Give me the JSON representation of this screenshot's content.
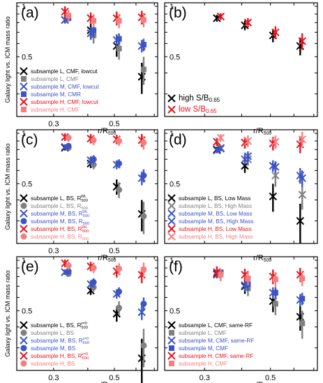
{
  "figure": {
    "ylabel": "Galaxy light vs. ICM mass ratio",
    "xlabel": "r/R",
    "xlabel_sub": "500"
  },
  "colors": {
    "black": "#000000",
    "gray": "#808080",
    "blue": "#3d55c4",
    "red": "#e8141e",
    "pink": "#f08080"
  },
  "chart_data": [
    {
      "panel_label": "(a)",
      "type": "scatter",
      "xscale": "log",
      "yscale": "log",
      "xticks": [
        "0.3",
        "0.5"
      ],
      "yticks": [
        "0.5",
        "1"
      ],
      "legend": "bottom-left",
      "series": [
        {
          "name": "subsample L, CMF, lowcut",
          "color": "black",
          "marker": "x",
          "x": [
            0.33,
            0.41,
            0.51,
            0.63
          ],
          "y": [
            0.83,
            0.72,
            0.58,
            0.38
          ],
          "err": [
            0.04,
            0.07,
            0.08,
            0.08
          ]
        },
        {
          "name": "subsample L, CMF",
          "color": "gray",
          "marker": "s",
          "x": [
            0.34,
            0.42,
            0.52,
            0.64
          ],
          "y": [
            0.86,
            0.67,
            0.56,
            0.42
          ],
          "err": [
            0.04,
            0.07,
            0.08,
            0.08
          ]
        },
        {
          "name": "subsample M, CMF, lowcut",
          "color": "blue",
          "marker": "x",
          "x": [
            0.33,
            0.41,
            0.51,
            0.63
          ],
          "y": [
            0.83,
            0.69,
            0.63,
            0.58
          ],
          "err": [
            0.04,
            0.06,
            0.05,
            0.05
          ]
        },
        {
          "name": "subsample M, CMR",
          "color": "blue",
          "marker": "s",
          "x": [
            0.34,
            0.42,
            0.52,
            0.64
          ],
          "y": [
            0.85,
            0.72,
            0.64,
            0.59
          ],
          "err": [
            0.04,
            0.06,
            0.05,
            0.05
          ]
        },
        {
          "name": "subsample H, CMF, lowcut",
          "color": "red",
          "marker": "x",
          "x": [
            0.33,
            0.41,
            0.51,
            0.63
          ],
          "y": [
            0.93,
            0.85,
            0.85,
            0.86
          ],
          "err": [
            0.07,
            0.07,
            0.08,
            0.08
          ]
        },
        {
          "name": "subsample H, CMF",
          "color": "pink",
          "marker": "s",
          "x": [
            0.34,
            0.42,
            0.52,
            0.64
          ],
          "y": [
            0.88,
            0.82,
            0.82,
            0.83
          ],
          "err": [
            0.07,
            0.07,
            0.08,
            0.08
          ]
        }
      ]
    },
    {
      "panel_label": "(b)",
      "type": "scatter",
      "xscale": "log",
      "yscale": "log",
      "xticks": [],
      "yticks": [
        "0.5",
        "1"
      ],
      "legend": "bottom-left",
      "series": [
        {
          "name": "high S/B",
          "name_sub": "0.65",
          "color": "black",
          "marker": "x",
          "x": [
            0.33,
            0.41,
            0.51,
            0.63
          ],
          "y": [
            0.85,
            0.77,
            0.67,
            0.58
          ],
          "err": [
            0.04,
            0.05,
            0.06,
            0.07
          ]
        },
        {
          "name": "low S/B",
          "name_sub": "0.65",
          "color": "red",
          "marker": "x",
          "x": [
            0.34,
            0.42,
            0.52,
            0.64
          ],
          "y": [
            0.87,
            0.8,
            0.7,
            0.62
          ],
          "err": [
            0.04,
            0.05,
            0.06,
            0.07
          ]
        }
      ]
    },
    {
      "panel_label": "(c)",
      "type": "scatter",
      "xscale": "log",
      "yscale": "log",
      "xticks": [
        "0.3",
        "0.5"
      ],
      "yticks": [
        "0.5",
        "1"
      ],
      "legend": "bottom-left",
      "series": [
        {
          "name": "subsample L, BS, R",
          "name_sub": "500",
          "name_sup": "WL",
          "color": "black",
          "marker": "x",
          "x": [
            0.33,
            0.41,
            0.51,
            0.63
          ],
          "y": [
            0.82,
            0.66,
            0.48,
            0.33
          ],
          "err": [
            0.03,
            0.04,
            0.05,
            0.07
          ]
        },
        {
          "name": "subsample L, BS, R",
          "name_sub": "500",
          "color": "gray",
          "marker": "o",
          "x": [
            0.34,
            0.42,
            0.52,
            0.64
          ],
          "y": [
            0.82,
            0.65,
            0.46,
            0.32
          ],
          "err": [
            0.03,
            0.04,
            0.05,
            0.07
          ]
        },
        {
          "name": "subsample M, BS, R",
          "name_sub": "500",
          "name_sup": "WL",
          "color": "blue",
          "marker": "x",
          "x": [
            0.33,
            0.41,
            0.51,
            0.63
          ],
          "y": [
            0.83,
            0.69,
            0.65,
            0.54
          ],
          "err": [
            0.03,
            0.04,
            0.04,
            0.05
          ]
        },
        {
          "name": "subsample M, BS, R",
          "name_sub": "500",
          "color": "blue",
          "marker": "o",
          "x": [
            0.34,
            0.42,
            0.52,
            0.64
          ],
          "y": [
            0.84,
            0.7,
            0.66,
            0.56
          ],
          "err": [
            0.03,
            0.04,
            0.04,
            0.05
          ]
        },
        {
          "name": "subsample H, BS, R",
          "name_sub": "500",
          "name_sup": "WL",
          "color": "red",
          "marker": "x",
          "x": [
            0.33,
            0.41,
            0.51,
            0.63
          ],
          "y": [
            0.95,
            0.93,
            0.92,
            0.91
          ],
          "err": [
            0.05,
            0.06,
            0.06,
            0.08
          ]
        },
        {
          "name": "subsample H, BS, R",
          "name_sub": "500",
          "color": "pink",
          "marker": "o",
          "x": [
            0.34,
            0.42,
            0.52,
            0.64
          ],
          "y": [
            0.94,
            0.91,
            0.9,
            0.88
          ],
          "err": [
            0.05,
            0.06,
            0.06,
            0.08
          ]
        }
      ]
    },
    {
      "panel_label": "(d)",
      "type": "scatter",
      "xscale": "log",
      "yscale": "log",
      "xticks": [],
      "yticks": [
        "0.5",
        "1"
      ],
      "legend": "bottom-left",
      "series": [
        {
          "name": "subsample L, BS, Low Mass",
          "color": "black",
          "marker": "x",
          "x": [
            0.33,
            0.41,
            0.51,
            0.63
          ],
          "y": [
            0.8,
            0.64,
            0.42,
            0.3
          ],
          "err": [
            0.03,
            0.06,
            0.08,
            0.08
          ]
        },
        {
          "name": "subsample L, BS, High Mass",
          "color": "gray",
          "marker": "x",
          "x": [
            0.34,
            0.42,
            0.52,
            0.64
          ],
          "y": [
            0.82,
            0.7,
            0.56,
            0.43
          ],
          "err": [
            0.03,
            0.06,
            0.08,
            0.08
          ]
        },
        {
          "name": "subsample M, BS, Low Mass",
          "color": "blue",
          "marker": "x",
          "x": [
            0.33,
            0.41,
            0.51,
            0.63
          ],
          "y": [
            0.79,
            0.7,
            0.64,
            0.56
          ],
          "err": [
            0.03,
            0.05,
            0.05,
            0.06
          ]
        },
        {
          "name": "subsample M, BS, High Mass",
          "color": "blue",
          "marker": "x",
          "x": [
            0.34,
            0.42,
            0.52,
            0.64
          ],
          "y": [
            0.81,
            0.73,
            0.63,
            0.54
          ],
          "err": [
            0.03,
            0.05,
            0.05,
            0.06
          ]
        },
        {
          "name": "subsample H, BS, Low Mass",
          "color": "red",
          "marker": "x",
          "x": [
            0.33,
            0.41,
            0.51,
            0.63
          ],
          "y": [
            0.89,
            0.88,
            0.87,
            0.86
          ],
          "err": [
            0.05,
            0.07,
            0.08,
            0.1
          ]
        },
        {
          "name": "subsample H, BS, High Mass",
          "color": "pink",
          "marker": "x",
          "x": [
            0.34,
            0.42,
            0.52,
            0.64
          ],
          "y": [
            0.94,
            0.9,
            0.89,
            0.92
          ],
          "err": [
            0.05,
            0.07,
            0.08,
            0.1
          ]
        }
      ]
    },
    {
      "panel_label": "(e)",
      "type": "scatter",
      "xscale": "log",
      "yscale": "log",
      "xticks": [
        "0.3",
        "0.5"
      ],
      "yticks": [
        "0.5",
        "1"
      ],
      "legend": "bottom-left",
      "series": [
        {
          "name": "subsample L, BS, R",
          "name_sub": "500",
          "name_sup": "z=0",
          "color": "black",
          "marker": "x",
          "x": [
            0.33,
            0.41,
            0.51,
            0.63
          ],
          "y": [
            0.85,
            0.66,
            0.48,
            0.26
          ],
          "err": [
            0.03,
            0.04,
            0.05,
            0.08
          ]
        },
        {
          "name": "subsample L, BS",
          "color": "gray",
          "marker": "o",
          "x": [
            0.34,
            0.42,
            0.52,
            0.64
          ],
          "y": [
            0.83,
            0.69,
            0.52,
            0.31
          ],
          "err": [
            0.03,
            0.04,
            0.05,
            0.08
          ]
        },
        {
          "name": "subsample M, BS, R",
          "name_sub": "500",
          "name_sup": "z=0",
          "color": "blue",
          "marker": "x",
          "x": [
            0.33,
            0.41,
            0.51,
            0.63
          ],
          "y": [
            0.85,
            0.72,
            0.63,
            0.49
          ],
          "err": [
            0.03,
            0.04,
            0.04,
            0.05
          ]
        },
        {
          "name": "subsample M, BS",
          "color": "blue",
          "marker": "o",
          "x": [
            0.34,
            0.42,
            0.52,
            0.64
          ],
          "y": [
            0.86,
            0.74,
            0.65,
            0.55
          ],
          "err": [
            0.03,
            0.04,
            0.04,
            0.05
          ]
        },
        {
          "name": "subsample H, BS, R",
          "name_sub": "500",
          "name_sup": "z=0",
          "color": "red",
          "marker": "x",
          "x": [
            0.33,
            0.41,
            0.51,
            0.63
          ],
          "y": [
            0.96,
            0.92,
            0.86,
            0.82
          ],
          "err": [
            0.05,
            0.06,
            0.07,
            0.09
          ]
        },
        {
          "name": "subsample H, BS",
          "color": "pink",
          "marker": "o",
          "x": [
            0.34,
            0.42,
            0.52,
            0.64
          ],
          "y": [
            0.93,
            0.9,
            0.89,
            0.88
          ],
          "err": [
            0.05,
            0.06,
            0.07,
            0.09
          ]
        }
      ]
    },
    {
      "panel_label": "(f)",
      "type": "scatter",
      "xscale": "log",
      "yscale": "log",
      "xticks": [
        "0.3",
        "0.5"
      ],
      "yticks": [
        "0.5",
        "1"
      ],
      "legend": "bottom-left",
      "series": [
        {
          "name": "subsample L, CMF, same-RF",
          "color": "black",
          "marker": "x",
          "x": [
            0.33,
            0.41,
            0.51,
            0.63
          ],
          "y": [
            0.83,
            0.7,
            0.57,
            0.46
          ],
          "err": [
            0.04,
            0.07,
            0.08,
            0.08
          ]
        },
        {
          "name": "subsample L, CMF",
          "color": "gray",
          "marker": "s",
          "x": [
            0.34,
            0.42,
            0.52,
            0.64
          ],
          "y": [
            0.85,
            0.68,
            0.55,
            0.42
          ],
          "err": [
            0.04,
            0.07,
            0.08,
            0.08
          ]
        },
        {
          "name": "subsample M, CMF, same-RF",
          "color": "blue",
          "marker": "x",
          "x": [
            0.33,
            0.41,
            0.51,
            0.63
          ],
          "y": [
            0.82,
            0.71,
            0.64,
            0.58
          ],
          "err": [
            0.04,
            0.06,
            0.05,
            0.05
          ]
        },
        {
          "name": "subsample M, CMF",
          "color": "blue",
          "marker": "s",
          "x": [
            0.34,
            0.42,
            0.52,
            0.64
          ],
          "y": [
            0.84,
            0.72,
            0.64,
            0.59
          ],
          "err": [
            0.04,
            0.06,
            0.05,
            0.05
          ]
        },
        {
          "name": "subsample H, CMF, same-RF",
          "color": "red",
          "marker": "x",
          "x": [
            0.33,
            0.41,
            0.51,
            0.63
          ],
          "y": [
            0.85,
            0.82,
            0.8,
            0.82
          ],
          "err": [
            0.07,
            0.07,
            0.08,
            0.08
          ]
        },
        {
          "name": "subsample H, CMF",
          "color": "pink",
          "marker": "s",
          "x": [
            0.34,
            0.42,
            0.52,
            0.64
          ],
          "y": [
            0.82,
            0.78,
            0.77,
            0.78
          ],
          "err": [
            0.07,
            0.07,
            0.08,
            0.08
          ]
        }
      ]
    }
  ]
}
